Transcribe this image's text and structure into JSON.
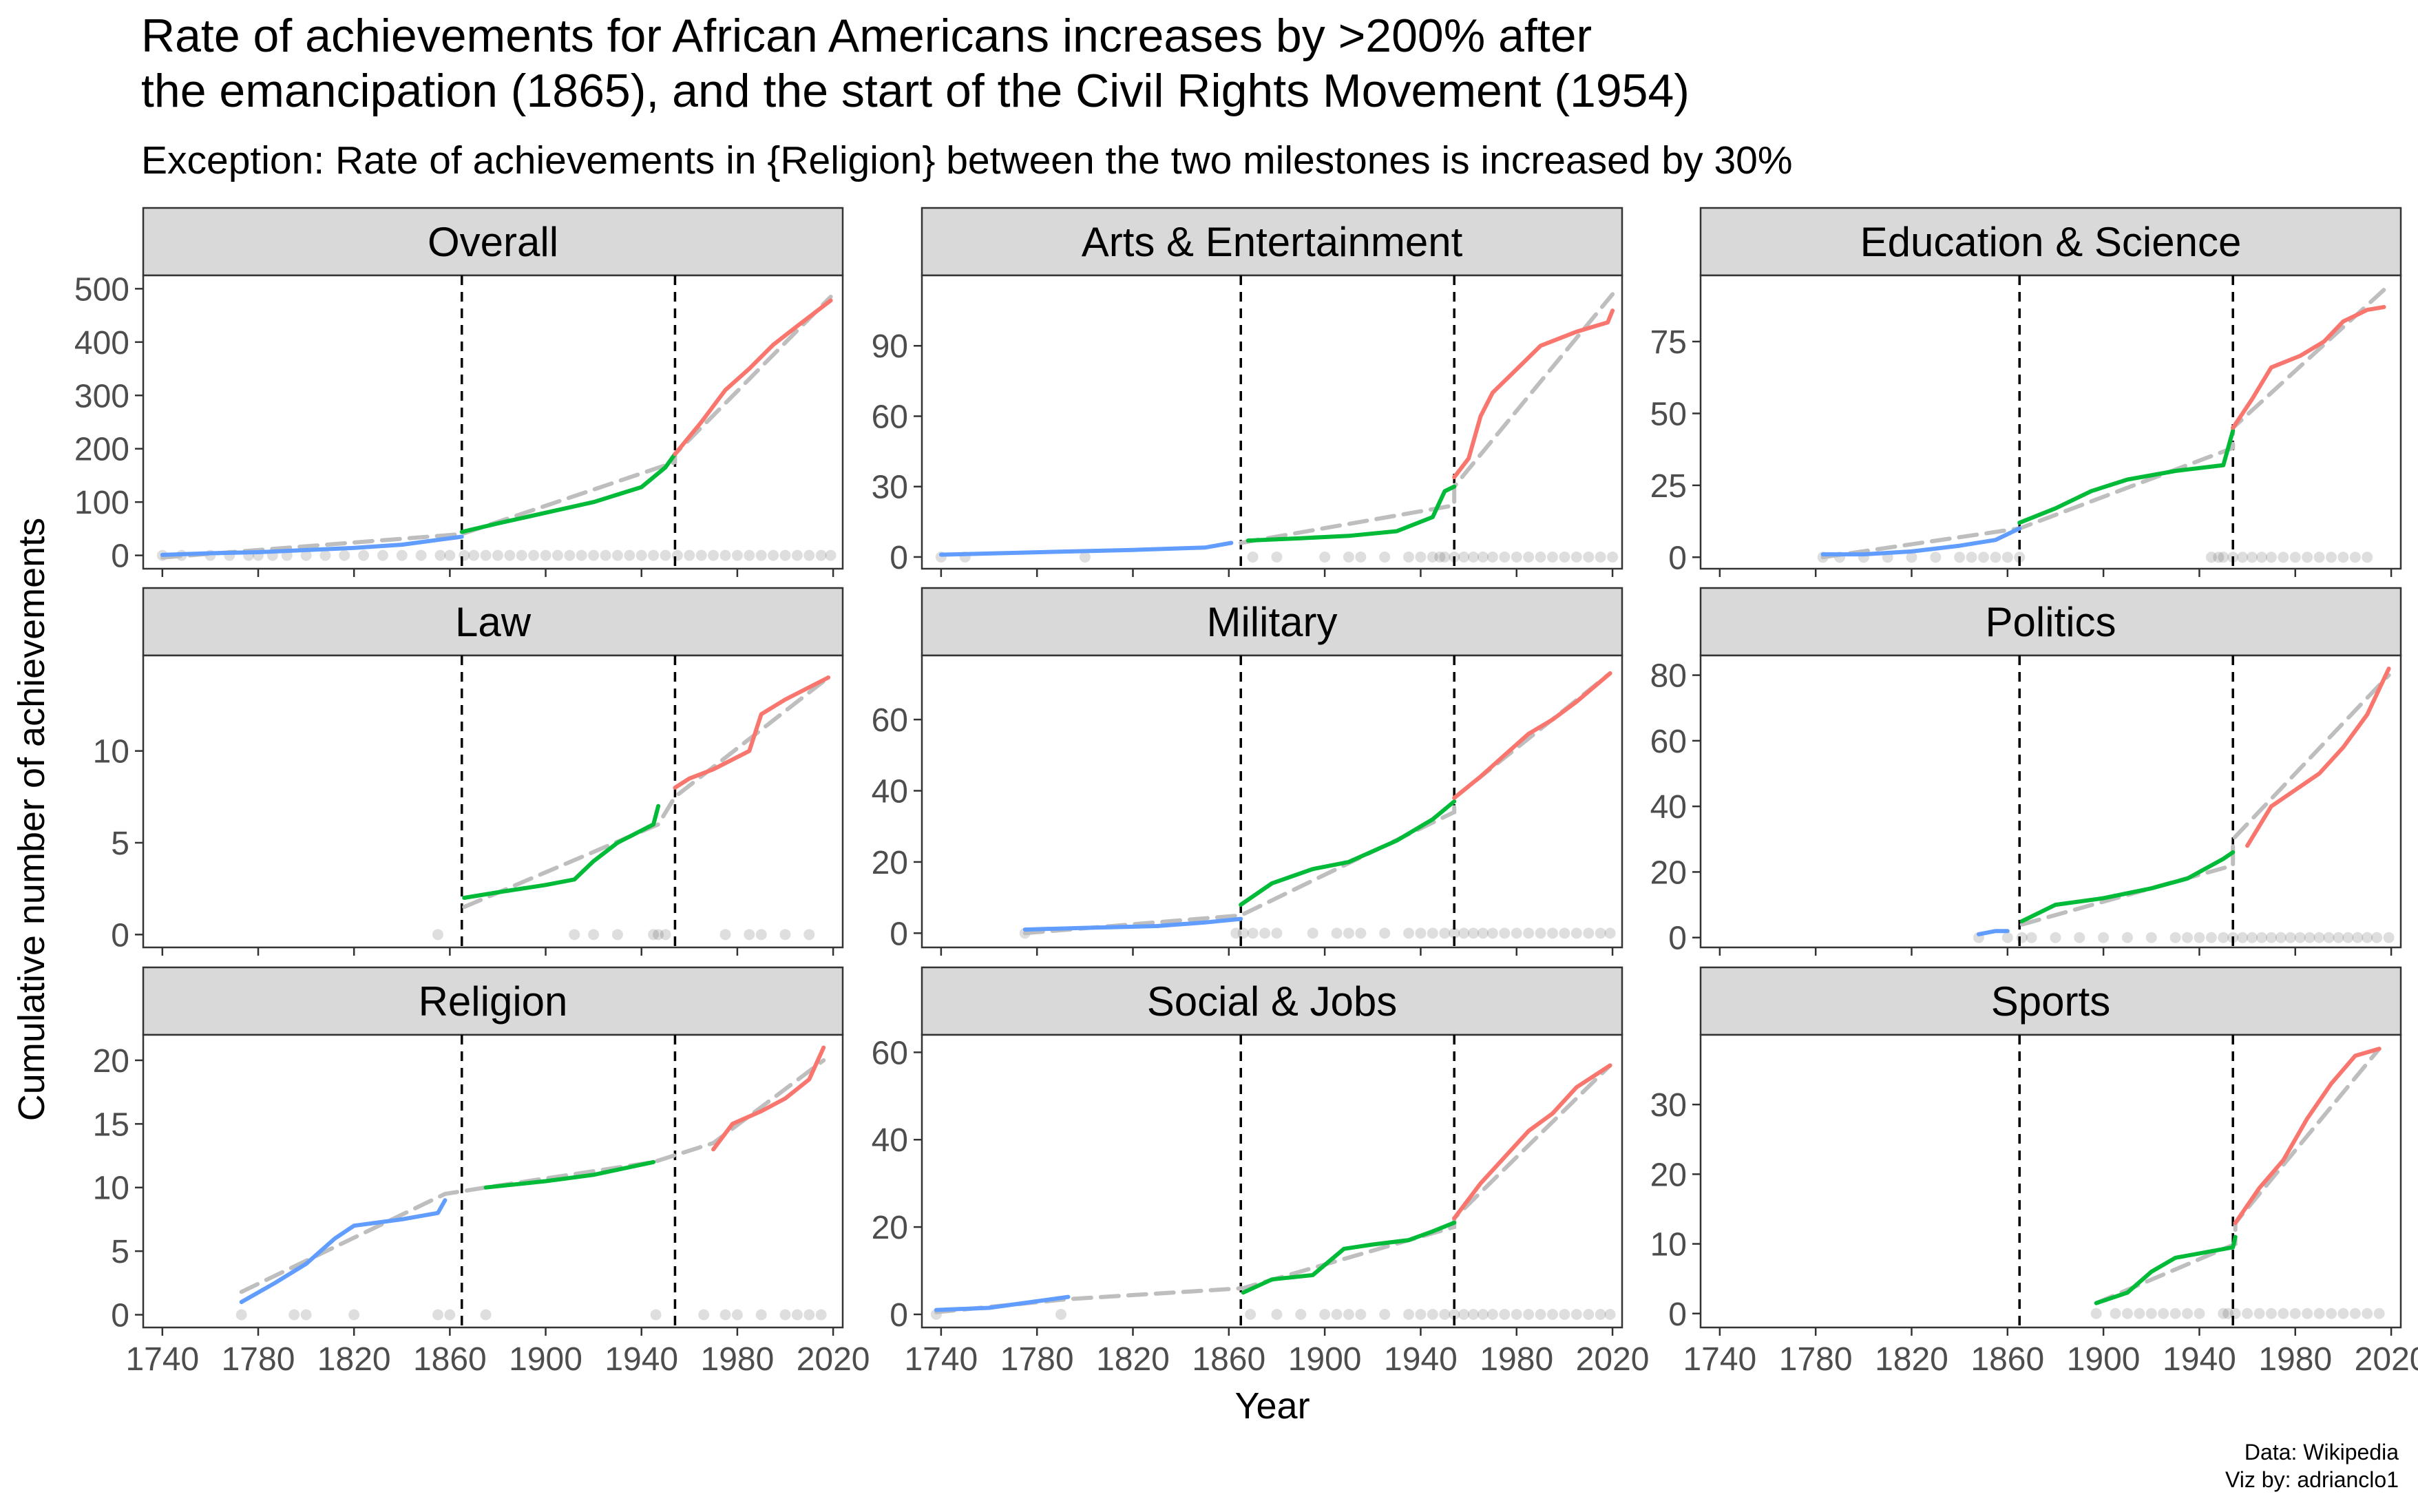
{
  "title": "Rate of achievements for African Americans increases by >200% after\nthe emancipation (1865), and the start of the Civil Rights Movement (1954)",
  "subtitle": "Exception: Rate of achievements in {Religion} between the two milestones is increased by 30%",
  "caption": [
    "Data: Wikipedia",
    "Viz by: adrianclo1"
  ],
  "chart_data": {
    "type": "line",
    "xlabel": "Year",
    "ylabel": "Cumulative number of achievements",
    "xlim": [
      1732,
      2024
    ],
    "x_ticks": [
      1740,
      1780,
      1820,
      1860,
      1900,
      1940,
      1980,
      2020
    ],
    "milestones": [
      1865,
      1954
    ],
    "colors": {
      "before": "#619CFF",
      "between": "#00BA38",
      "after": "#F8766D",
      "trend": "#BEBEBE",
      "points": "#000000"
    },
    "panels": [
      {
        "name": "Overall",
        "ylim": [
          -25,
          525
        ],
        "y_ticks": [
          0,
          100,
          200,
          300,
          400,
          500
        ],
        "before": [
          [
            1740,
            1
          ],
          [
            1760,
            4
          ],
          [
            1780,
            6
          ],
          [
            1800,
            10
          ],
          [
            1820,
            14
          ],
          [
            1840,
            20
          ],
          [
            1865,
            35
          ]
        ],
        "between": [
          [
            1865,
            44
          ],
          [
            1880,
            60
          ],
          [
            1900,
            80
          ],
          [
            1920,
            100
          ],
          [
            1940,
            128
          ],
          [
            1950,
            165
          ],
          [
            1954,
            190
          ]
        ],
        "after": [
          [
            1954,
            190
          ],
          [
            1965,
            250
          ],
          [
            1975,
            310
          ],
          [
            1985,
            350
          ],
          [
            1995,
            395
          ],
          [
            2005,
            430
          ],
          [
            2019,
            478
          ]
        ],
        "trend": [
          [
            1740,
            -4
          ],
          [
            1865,
            40
          ],
          [
            1954,
            175
          ],
          [
            1954,
            190
          ],
          [
            2019,
            485
          ]
        ],
        "points": [
          1740,
          1748,
          1760,
          1768,
          1776,
          1780,
          1786,
          1792,
          1800,
          1808,
          1816,
          1824,
          1832,
          1840,
          1848,
          1856,
          1860,
          1866,
          1870,
          1875,
          1880,
          1885,
          1890,
          1895,
          1900,
          1905,
          1910,
          1915,
          1920,
          1925,
          1930,
          1935,
          1940,
          1945,
          1950,
          1955,
          1960,
          1965,
          1970,
          1975,
          1980,
          1985,
          1990,
          1995,
          2000,
          2005,
          2010,
          2015,
          2019
        ]
      },
      {
        "name": "Arts & Entertainment",
        "ylim": [
          -5,
          120
        ],
        "y_ticks": [
          0,
          30,
          60,
          90
        ],
        "before": [
          [
            1740,
            1
          ],
          [
            1780,
            2
          ],
          [
            1820,
            3
          ],
          [
            1850,
            4
          ],
          [
            1861,
            6
          ]
        ],
        "between": [
          [
            1868,
            7
          ],
          [
            1890,
            8
          ],
          [
            1910,
            9
          ],
          [
            1930,
            11
          ],
          [
            1945,
            17
          ],
          [
            1950,
            28
          ],
          [
            1954,
            30
          ]
        ],
        "after": [
          [
            1954,
            34
          ],
          [
            1960,
            42
          ],
          [
            1965,
            60
          ],
          [
            1970,
            70
          ],
          [
            1980,
            80
          ],
          [
            1990,
            90
          ],
          [
            2005,
            96
          ],
          [
            2018,
            100
          ],
          [
            2020,
            105
          ]
        ],
        "trend": [
          [
            1865,
            6
          ],
          [
            1954,
            22
          ],
          [
            1954,
            30
          ],
          [
            2020,
            112
          ]
        ],
        "points": [
          1740,
          1750,
          1800,
          1870,
          1880,
          1900,
          1910,
          1915,
          1925,
          1935,
          1940,
          1945,
          1948,
          1950,
          1954,
          1958,
          1962,
          1966,
          1970,
          1975,
          1980,
          1985,
          1990,
          1995,
          2000,
          2005,
          2010,
          2015,
          2020
        ]
      },
      {
        "name": "Education & Science",
        "ylim": [
          -4,
          98
        ],
        "y_ticks": [
          0,
          25,
          50,
          75
        ],
        "before": [
          [
            1783,
            1
          ],
          [
            1800,
            1
          ],
          [
            1820,
            2
          ],
          [
            1840,
            4
          ],
          [
            1855,
            6
          ],
          [
            1865,
            10
          ]
        ],
        "between": [
          [
            1865,
            12
          ],
          [
            1880,
            17
          ],
          [
            1895,
            23
          ],
          [
            1910,
            27
          ],
          [
            1930,
            30
          ],
          [
            1950,
            32
          ],
          [
            1954,
            44
          ]
        ],
        "after": [
          [
            1954,
            45
          ],
          [
            1962,
            55
          ],
          [
            1970,
            66
          ],
          [
            1982,
            70
          ],
          [
            1992,
            75
          ],
          [
            2000,
            82
          ],
          [
            2010,
            86
          ],
          [
            2017,
            87
          ]
        ],
        "trend": [
          [
            1783,
            0
          ],
          [
            1865,
            10
          ],
          [
            1954,
            38
          ],
          [
            1954,
            45
          ],
          [
            2017,
            93
          ]
        ],
        "points": [
          1783,
          1790,
          1800,
          1810,
          1820,
          1830,
          1840,
          1845,
          1850,
          1855,
          1860,
          1865,
          1945,
          1948,
          1950,
          1954,
          1958,
          1962,
          1966,
          1970,
          1975,
          1980,
          1985,
          1990,
          1995,
          2000,
          2005,
          2010
        ]
      },
      {
        "name": "Law",
        "ylim": [
          -0.7,
          15.2
        ],
        "y_ticks": [
          0,
          5,
          10
        ],
        "before": [],
        "between": [
          [
            1866,
            2
          ],
          [
            1880,
            2.3
          ],
          [
            1900,
            2.7
          ],
          [
            1912,
            3
          ],
          [
            1920,
            4
          ],
          [
            1930,
            5
          ],
          [
            1945,
            6
          ],
          [
            1947,
            7
          ]
        ],
        "after": [
          [
            1954,
            8
          ],
          [
            1960,
            8.5
          ],
          [
            1970,
            9
          ],
          [
            1985,
            10
          ],
          [
            1990,
            12
          ],
          [
            2000,
            12.8
          ],
          [
            2018,
            14
          ]
        ],
        "trend": [
          [
            1866,
            1.5
          ],
          [
            1947,
            6
          ],
          [
            1954,
            7.5
          ],
          [
            2018,
            14
          ]
        ],
        "points": [
          1855,
          1912,
          1920,
          1930,
          1945,
          1947,
          1950,
          1975,
          1985,
          1990,
          2000,
          2010
        ]
      },
      {
        "name": "Military",
        "ylim": [
          -4,
          78
        ],
        "y_ticks": [
          0,
          20,
          40,
          60
        ],
        "before": [
          [
            1775,
            1
          ],
          [
            1800,
            1.5
          ],
          [
            1830,
            2
          ],
          [
            1850,
            3
          ],
          [
            1865,
            4
          ]
        ],
        "between": [
          [
            1865,
            8
          ],
          [
            1878,
            14
          ],
          [
            1895,
            18
          ],
          [
            1910,
            20
          ],
          [
            1930,
            26
          ],
          [
            1945,
            32
          ],
          [
            1954,
            37
          ]
        ],
        "after": [
          [
            1954,
            38
          ],
          [
            1965,
            44
          ],
          [
            1975,
            50
          ],
          [
            1985,
            56
          ],
          [
            1995,
            60
          ],
          [
            2005,
            65
          ],
          [
            2019,
            73
          ]
        ],
        "trend": [
          [
            1775,
            0
          ],
          [
            1865,
            5
          ],
          [
            1954,
            34
          ],
          [
            1954,
            38
          ],
          [
            2019,
            73
          ]
        ],
        "points": [
          1775,
          1863,
          1866,
          1870,
          1875,
          1880,
          1895,
          1905,
          1910,
          1915,
          1925,
          1935,
          1940,
          1945,
          1950,
          1954,
          1958,
          1962,
          1966,
          1970,
          1975,
          1980,
          1985,
          1990,
          1995,
          2000,
          2005,
          2010,
          2015,
          2019
        ]
      },
      {
        "name": "Politics",
        "ylim": [
          -3,
          86
        ],
        "y_ticks": [
          0,
          20,
          40,
          60,
          80
        ],
        "before": [
          [
            1848,
            1
          ],
          [
            1855,
            2
          ],
          [
            1860,
            2
          ]
        ],
        "between": [
          [
            1866,
            5
          ],
          [
            1880,
            10
          ],
          [
            1900,
            12
          ],
          [
            1920,
            15
          ],
          [
            1935,
            18
          ],
          [
            1945,
            22
          ],
          [
            1950,
            24
          ],
          [
            1954,
            26
          ]
        ],
        "after": [
          [
            1960,
            28
          ],
          [
            1970,
            40
          ],
          [
            1980,
            45
          ],
          [
            1990,
            50
          ],
          [
            2000,
            58
          ],
          [
            2010,
            68
          ],
          [
            2019,
            82
          ]
        ],
        "trend": [
          [
            1866,
            4
          ],
          [
            1954,
            22
          ],
          [
            1954,
            30
          ],
          [
            2019,
            80
          ]
        ],
        "points": [
          1848,
          1860,
          1866,
          1870,
          1880,
          1890,
          1900,
          1910,
          1920,
          1930,
          1935,
          1940,
          1945,
          1950,
          1954,
          1958,
          1962,
          1966,
          1970,
          1974,
          1978,
          1982,
          1986,
          1990,
          1994,
          1998,
          2002,
          2006,
          2010,
          2014,
          2019
        ]
      },
      {
        "name": "Religion",
        "ylim": [
          -1,
          22
        ],
        "y_ticks": [
          0,
          5,
          10,
          15,
          20
        ],
        "before": [
          [
            1773,
            1
          ],
          [
            1787,
            2.5
          ],
          [
            1800,
            4
          ],
          [
            1806,
            5
          ],
          [
            1812,
            6
          ],
          [
            1820,
            7
          ],
          [
            1840,
            7.5
          ],
          [
            1855,
            8
          ],
          [
            1858,
            9
          ]
        ],
        "between": [
          [
            1875,
            10
          ],
          [
            1900,
            10.5
          ],
          [
            1920,
            11
          ],
          [
            1945,
            12
          ]
        ],
        "after": [
          [
            1970,
            13
          ],
          [
            1978,
            15
          ],
          [
            1990,
            16
          ],
          [
            2000,
            17
          ],
          [
            2010,
            18.5
          ],
          [
            2016,
            21
          ]
        ],
        "trend": [
          [
            1773,
            1.8
          ],
          [
            1858,
            9.5
          ],
          [
            1875,
            10
          ],
          [
            1945,
            12
          ],
          [
            1970,
            13.5
          ],
          [
            2016,
            20
          ]
        ],
        "points": [
          1773,
          1795,
          1800,
          1820,
          1855,
          1860,
          1875,
          1946,
          1966,
          1975,
          1980,
          1990,
          2000,
          2005,
          2010,
          2015
        ]
      },
      {
        "name": "Social & Jobs",
        "ylim": [
          -3,
          64
        ],
        "y_ticks": [
          0,
          20,
          40,
          60
        ],
        "before": [
          [
            1738,
            1
          ],
          [
            1760,
            1.5
          ],
          [
            1780,
            3
          ],
          [
            1793,
            4
          ]
        ],
        "between": [
          [
            1866,
            5
          ],
          [
            1878,
            8
          ],
          [
            1895,
            9
          ],
          [
            1908,
            15
          ],
          [
            1920,
            16
          ],
          [
            1935,
            17
          ],
          [
            1945,
            19
          ],
          [
            1954,
            21
          ]
        ],
        "after": [
          [
            1954,
            22
          ],
          [
            1965,
            30
          ],
          [
            1975,
            36
          ],
          [
            1985,
            42
          ],
          [
            1995,
            46
          ],
          [
            2005,
            52
          ],
          [
            2019,
            57
          ]
        ],
        "trend": [
          [
            1738,
            0.5
          ],
          [
            1793,
            3.5
          ],
          [
            1866,
            6
          ],
          [
            1954,
            20
          ],
          [
            1954,
            22
          ],
          [
            2019,
            57
          ]
        ],
        "points": [
          1738,
          1790,
          1869,
          1880,
          1890,
          1900,
          1905,
          1910,
          1915,
          1925,
          1935,
          1940,
          1945,
          1950,
          1954,
          1958,
          1962,
          1966,
          1970,
          1975,
          1980,
          1985,
          1990,
          1995,
          2000,
          2005,
          2010,
          2015,
          2019
        ]
      },
      {
        "name": "Sports",
        "ylim": [
          -2,
          40
        ],
        "y_ticks": [
          0,
          10,
          20,
          30
        ],
        "before": [],
        "between": [
          [
            1897,
            1.5
          ],
          [
            1910,
            3
          ],
          [
            1920,
            6
          ],
          [
            1930,
            8
          ],
          [
            1954,
            9.5
          ],
          [
            1955,
            11
          ]
        ],
        "after": [
          [
            1955,
            13
          ],
          [
            1965,
            18
          ],
          [
            1975,
            22
          ],
          [
            1985,
            28
          ],
          [
            1995,
            33
          ],
          [
            2005,
            37
          ],
          [
            2015,
            38
          ]
        ],
        "trend": [
          [
            1897,
            1.5
          ],
          [
            1955,
            10
          ],
          [
            1955,
            13
          ],
          [
            2015,
            38
          ]
        ],
        "points": [
          1897,
          1905,
          1910,
          1915,
          1920,
          1925,
          1930,
          1935,
          1940,
          1950,
          1952,
          1955,
          1960,
          1965,
          1970,
          1975,
          1980,
          1985,
          1990,
          1995,
          2000,
          2005,
          2010,
          2015
        ]
      }
    ]
  }
}
